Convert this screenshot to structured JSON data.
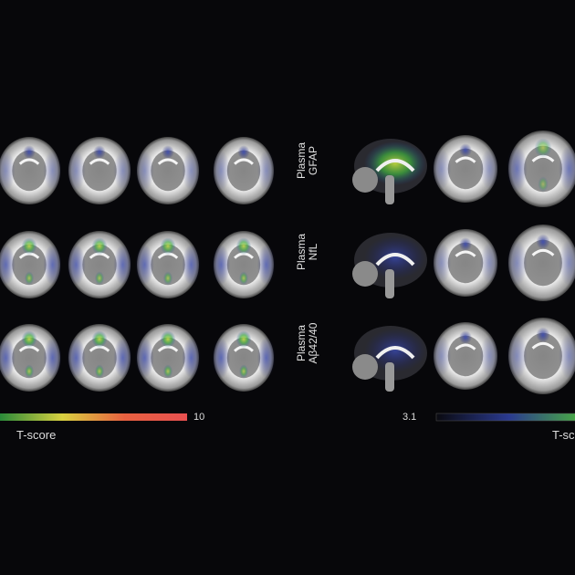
{
  "rows": [
    {
      "label_line1": "Plasma",
      "label_line2": "GFAP",
      "left_intensity": 0.15,
      "right_intensity": 0.7
    },
    {
      "label_line1": "Plasma",
      "label_line2": "NfL",
      "left_intensity": 0.8,
      "right_intensity": 0.2
    },
    {
      "label_line1": "Plasma",
      "label_line2": "Aβ42/40",
      "left_intensity": 0.85,
      "right_intensity": 0.35
    }
  ],
  "left_colorbar": {
    "max_label": "10",
    "title": "T-score",
    "colors": [
      "#2a8a3a",
      "#d8d040",
      "#e86040",
      "#e85050"
    ]
  },
  "right_colorbar": {
    "min_label": "3.1",
    "title": "T-sc",
    "colors": [
      "#0a0a10",
      "#2a3a90",
      "#4ab040"
    ]
  }
}
